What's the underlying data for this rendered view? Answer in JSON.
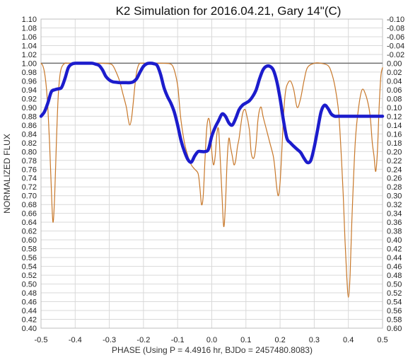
{
  "chart_data": {
    "type": "line",
    "title": "K2 Simulation for 2016.04.21, Gary 14\"(C)",
    "xlabel": "PHASE (Using P = 4.4916 hr, BJDo = 2457480.8083)",
    "ylabel": "NORMALIZED FLUX",
    "xlim": [
      -0.5,
      0.5
    ],
    "ylim": [
      0.4,
      1.1
    ],
    "y2lim": [
      -0.1,
      0.6
    ],
    "y2_inverted": true,
    "grid": true,
    "legend": "none",
    "x_ticks": [
      "-0.5",
      "-0.4",
      "-0.3",
      "-0.2",
      "-0.1",
      "0.0",
      "0.1",
      "0.2",
      "0.3",
      "0.4",
      "0.5"
    ],
    "y_ticks": [
      "0.40",
      "0.42",
      "0.44",
      "0.46",
      "0.48",
      "0.50",
      "0.52",
      "0.54",
      "0.56",
      "0.58",
      "0.60",
      "0.62",
      "0.64",
      "0.66",
      "0.68",
      "0.70",
      "0.72",
      "0.74",
      "0.76",
      "0.78",
      "0.80",
      "0.82",
      "0.84",
      "0.86",
      "0.88",
      "0.90",
      "0.92",
      "0.94",
      "0.96",
      "0.98",
      "1.00",
      "1.02",
      "1.04",
      "1.06",
      "1.08",
      "1.10"
    ],
    "y2_ticks": [
      "0.60",
      "0.58",
      "0.56",
      "0.54",
      "0.52",
      "0.50",
      "0.48",
      "0.46",
      "0.44",
      "0.42",
      "0.40",
      "0.38",
      "0.36",
      "0.34",
      "0.32",
      "0.30",
      "0.28",
      "0.26",
      "0.24",
      "0.22",
      "0.20",
      "0.18",
      "0.16",
      "0.14",
      "0.12",
      "0.10",
      "0.08",
      "0.06",
      "0.04",
      "0.02",
      "0.00",
      "-0.02",
      "-0.04",
      "-0.06",
      "-0.08",
      "-0.10"
    ],
    "reference_line": {
      "y": 1.0,
      "color": "#707070"
    },
    "series": [
      {
        "color": "#c8782a",
        "style": "thin",
        "x": [
          -0.5,
          -0.495,
          -0.49,
          -0.485,
          -0.48,
          -0.475,
          -0.47,
          -0.465,
          -0.46,
          -0.455,
          -0.45,
          -0.445,
          -0.44,
          -0.43,
          -0.42,
          -0.4,
          -0.38,
          -0.35,
          -0.32,
          -0.3,
          -0.29,
          -0.28,
          -0.27,
          -0.26,
          -0.25,
          -0.245,
          -0.24,
          -0.235,
          -0.23,
          -0.225,
          -0.22,
          -0.215,
          -0.21,
          -0.2,
          -0.18,
          -0.16,
          -0.14,
          -0.12,
          -0.11,
          -0.1,
          -0.095,
          -0.09,
          -0.08,
          -0.07,
          -0.06,
          -0.05,
          -0.04,
          -0.035,
          -0.03,
          -0.025,
          -0.02,
          -0.015,
          -0.01,
          -0.005,
          0.0,
          0.005,
          0.01,
          0.015,
          0.02,
          0.025,
          0.03,
          0.035,
          0.04,
          0.045,
          0.05,
          0.055,
          0.06,
          0.065,
          0.07,
          0.075,
          0.08,
          0.085,
          0.09,
          0.095,
          0.1,
          0.11,
          0.115,
          0.12,
          0.125,
          0.13,
          0.135,
          0.14,
          0.145,
          0.15,
          0.16,
          0.17,
          0.18,
          0.185,
          0.19,
          0.195,
          0.2,
          0.205,
          0.21,
          0.215,
          0.22,
          0.23,
          0.24,
          0.25,
          0.26,
          0.27,
          0.28,
          0.3,
          0.32,
          0.34,
          0.35,
          0.36,
          0.37,
          0.375,
          0.38,
          0.385,
          0.39,
          0.395,
          0.4,
          0.405,
          0.41,
          0.42,
          0.43,
          0.44,
          0.45,
          0.46,
          0.465,
          0.47,
          0.475,
          0.48,
          0.485,
          0.49,
          0.495,
          0.5
        ],
        "y": [
          1.0,
          0.995,
          0.98,
          0.95,
          0.9,
          0.82,
          0.72,
          0.64,
          0.7,
          0.82,
          0.92,
          0.97,
          0.99,
          1.0,
          1.0,
          1.0,
          1.0,
          1.0,
          1.0,
          0.999,
          0.995,
          0.98,
          0.96,
          0.93,
          0.9,
          0.875,
          0.86,
          0.875,
          0.91,
          0.95,
          0.98,
          0.995,
          1.0,
          1.0,
          1.0,
          1.0,
          1.0,
          0.998,
          0.985,
          0.95,
          0.91,
          0.87,
          0.82,
          0.79,
          0.77,
          0.76,
          0.75,
          0.72,
          0.68,
          0.7,
          0.78,
          0.85,
          0.875,
          0.86,
          0.8,
          0.77,
          0.79,
          0.84,
          0.85,
          0.78,
          0.7,
          0.63,
          0.68,
          0.78,
          0.83,
          0.81,
          0.79,
          0.77,
          0.78,
          0.81,
          0.83,
          0.86,
          0.885,
          0.895,
          0.89,
          0.85,
          0.8,
          0.785,
          0.79,
          0.82,
          0.87,
          0.895,
          0.9,
          0.88,
          0.85,
          0.82,
          0.79,
          0.76,
          0.72,
          0.7,
          0.73,
          0.8,
          0.88,
          0.93,
          0.95,
          0.96,
          0.94,
          0.9,
          0.92,
          0.96,
          0.99,
          1.0,
          1.0,
          0.995,
          0.98,
          0.95,
          0.9,
          0.85,
          0.78,
          0.7,
          0.6,
          0.52,
          0.47,
          0.52,
          0.64,
          0.82,
          0.9,
          0.94,
          0.93,
          0.9,
          0.87,
          0.82,
          0.79,
          0.755,
          0.8,
          0.9,
          0.97,
          0.99
        ]
      },
      {
        "color": "#1c1ccc",
        "style": "thick",
        "x": [
          -0.5,
          -0.49,
          -0.48,
          -0.47,
          -0.46,
          -0.45,
          -0.44,
          -0.43,
          -0.42,
          -0.41,
          -0.4,
          -0.39,
          -0.38,
          -0.37,
          -0.36,
          -0.35,
          -0.34,
          -0.33,
          -0.32,
          -0.31,
          -0.3,
          -0.29,
          -0.28,
          -0.27,
          -0.26,
          -0.25,
          -0.24,
          -0.23,
          -0.22,
          -0.21,
          -0.2,
          -0.19,
          -0.18,
          -0.17,
          -0.16,
          -0.15,
          -0.14,
          -0.13,
          -0.12,
          -0.11,
          -0.1,
          -0.09,
          -0.08,
          -0.07,
          -0.06,
          -0.05,
          -0.04,
          -0.03,
          -0.02,
          -0.01,
          0.0,
          0.01,
          0.02,
          0.03,
          0.04,
          0.05,
          0.06,
          0.07,
          0.08,
          0.09,
          0.1,
          0.11,
          0.12,
          0.13,
          0.14,
          0.15,
          0.16,
          0.17,
          0.18,
          0.19,
          0.2,
          0.21,
          0.22,
          0.23,
          0.24,
          0.25,
          0.26,
          0.27,
          0.28,
          0.29,
          0.3,
          0.31,
          0.32,
          0.33,
          0.34,
          0.35,
          0.36,
          0.37,
          0.38,
          0.39,
          0.4,
          0.41,
          0.42,
          0.43,
          0.44,
          0.45,
          0.46,
          0.47,
          0.48,
          0.49,
          0.5
        ],
        "y": [
          0.88,
          0.89,
          0.91,
          0.935,
          0.94,
          0.942,
          0.945,
          0.965,
          0.99,
          0.998,
          1.0,
          1.0,
          1.0,
          1.0,
          1.0,
          1.0,
          0.998,
          0.995,
          0.985,
          0.97,
          0.962,
          0.958,
          0.957,
          0.956,
          0.956,
          0.956,
          0.956,
          0.958,
          0.965,
          0.98,
          0.993,
          0.999,
          1.0,
          0.999,
          0.995,
          0.975,
          0.945,
          0.925,
          0.91,
          0.89,
          0.86,
          0.825,
          0.8,
          0.782,
          0.776,
          0.79,
          0.8,
          0.8,
          0.8,
          0.805,
          0.835,
          0.855,
          0.87,
          0.885,
          0.88,
          0.865,
          0.86,
          0.875,
          0.895,
          0.905,
          0.91,
          0.915,
          0.925,
          0.94,
          0.965,
          0.985,
          0.993,
          0.993,
          0.985,
          0.96,
          0.92,
          0.87,
          0.83,
          0.82,
          0.812,
          0.805,
          0.798,
          0.785,
          0.775,
          0.78,
          0.81,
          0.85,
          0.89,
          0.905,
          0.898,
          0.885,
          0.88,
          0.88,
          0.88,
          0.88,
          0.88,
          0.88,
          0.88,
          0.88,
          0.88,
          0.88,
          0.88,
          0.88,
          0.88,
          0.88,
          0.88
        ]
      }
    ]
  }
}
